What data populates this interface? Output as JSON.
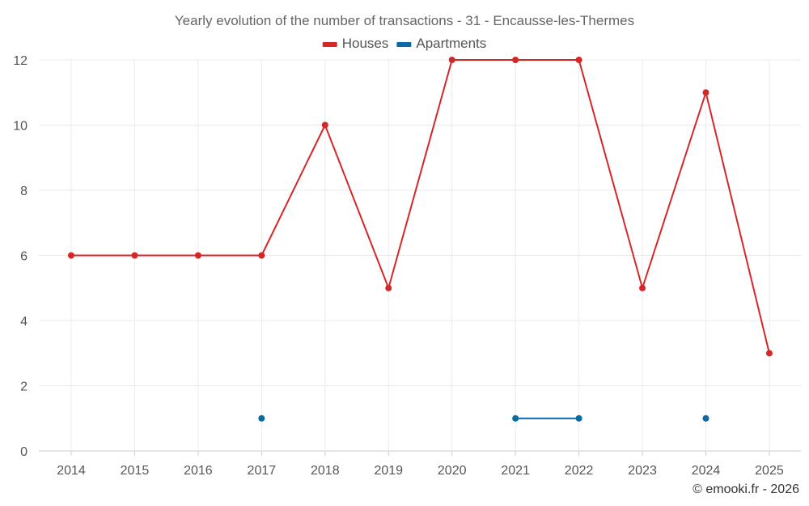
{
  "chart_data": {
    "type": "line",
    "title": "Yearly evolution of the number of transactions - 31 - Encausse-les-Thermes",
    "xlabel": "",
    "ylabel": "",
    "categories": [
      "2014",
      "2015",
      "2016",
      "2017",
      "2018",
      "2019",
      "2020",
      "2021",
      "2022",
      "2023",
      "2024",
      "2025"
    ],
    "ylim": [
      0,
      12
    ],
    "yticks": [
      0,
      2,
      4,
      6,
      8,
      10,
      12
    ],
    "grid": true,
    "legend_position": "top-center",
    "series": [
      {
        "name": "Houses",
        "color": "#d62728",
        "values": [
          6,
          6,
          6,
          6,
          10,
          5,
          12,
          12,
          12,
          5,
          11,
          3
        ]
      },
      {
        "name": "Apartments",
        "color": "#0a6aa1",
        "values": [
          null,
          null,
          null,
          1,
          null,
          null,
          null,
          1,
          1,
          null,
          1,
          null
        ]
      }
    ]
  },
  "credit": "© emooki.fr - 2026"
}
